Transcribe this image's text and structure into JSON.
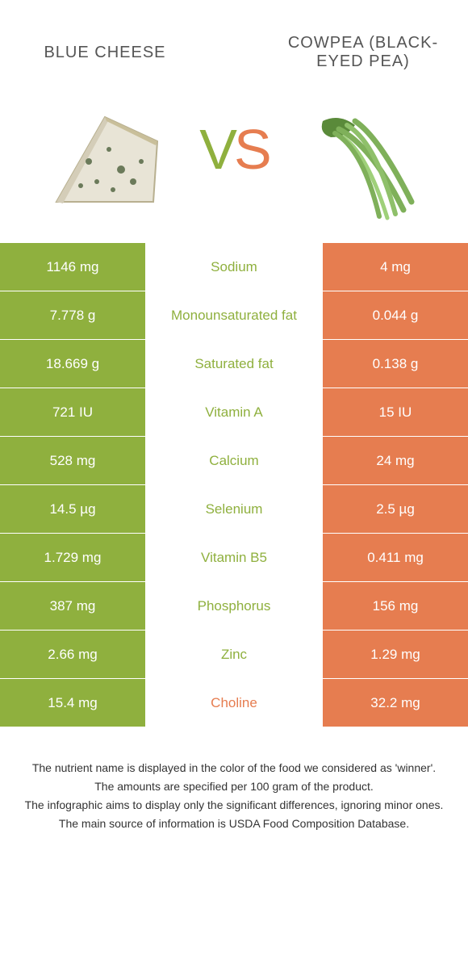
{
  "colors": {
    "left": "#8fb03e",
    "right": "#e67d50",
    "text_dark": "#555555",
    "white": "#ffffff"
  },
  "left_food": {
    "title": "BLUE CHEESE"
  },
  "right_food": {
    "title": "COWPEA (BLACK-EYED PEA)"
  },
  "vs": {
    "v": "V",
    "s": "S"
  },
  "rows": [
    {
      "left": "1146 mg",
      "label": "Sodium",
      "right": "4 mg",
      "winner": "left"
    },
    {
      "left": "7.778 g",
      "label": "Monounsaturated fat",
      "right": "0.044 g",
      "winner": "left"
    },
    {
      "left": "18.669 g",
      "label": "Saturated fat",
      "right": "0.138 g",
      "winner": "left"
    },
    {
      "left": "721 IU",
      "label": "Vitamin A",
      "right": "15 IU",
      "winner": "left"
    },
    {
      "left": "528 mg",
      "label": "Calcium",
      "right": "24 mg",
      "winner": "left"
    },
    {
      "left": "14.5 µg",
      "label": "Selenium",
      "right": "2.5 µg",
      "winner": "left"
    },
    {
      "left": "1.729 mg",
      "label": "Vitamin B5",
      "right": "0.411 mg",
      "winner": "left"
    },
    {
      "left": "387 mg",
      "label": "Phosphorus",
      "right": "156 mg",
      "winner": "left"
    },
    {
      "left": "2.66 mg",
      "label": "Zinc",
      "right": "1.29 mg",
      "winner": "left"
    },
    {
      "left": "15.4 mg",
      "label": "Choline",
      "right": "32.2 mg",
      "winner": "right"
    }
  ],
  "footer": [
    "The nutrient name is displayed in the color of the food we considered as 'winner'.",
    "The amounts are specified per 100 gram of the product.",
    "The infographic aims to display only the significant differences, ignoring minor ones.",
    "The main source of information is USDA Food Composition Database."
  ]
}
